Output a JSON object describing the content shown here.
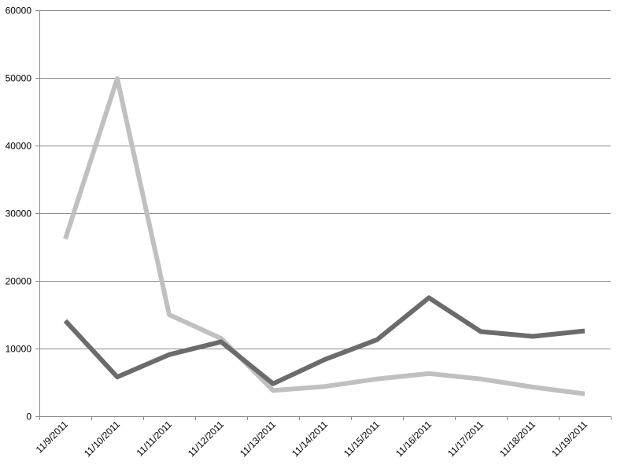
{
  "chart_data": {
    "type": "line",
    "title": "",
    "xlabel": "",
    "ylabel": "",
    "x": [
      "11/9/2011",
      "11/10/2011",
      "11/11/2011",
      "11/12/2011",
      "11/13/2011",
      "11/14/2011",
      "11/15/2011",
      "11/16/2011",
      "11/17/2011",
      "11/18/2011",
      "11/19/2011"
    ],
    "ylim": [
      0,
      60000
    ],
    "yticks": [
      0,
      10000,
      20000,
      30000,
      40000,
      50000,
      60000
    ],
    "grid": true,
    "legend": "none",
    "series": [
      {
        "values": [
          26200,
          49900,
          15000,
          11500,
          3800,
          4400,
          5500,
          6300,
          5500,
          4300,
          3300
        ],
        "color": "#c0c0c0"
      },
      {
        "values": [
          14100,
          5800,
          9100,
          11000,
          4800,
          8400,
          11300,
          17500,
          12500,
          11800,
          12600
        ],
        "color": "#6b6b6b"
      }
    ]
  }
}
